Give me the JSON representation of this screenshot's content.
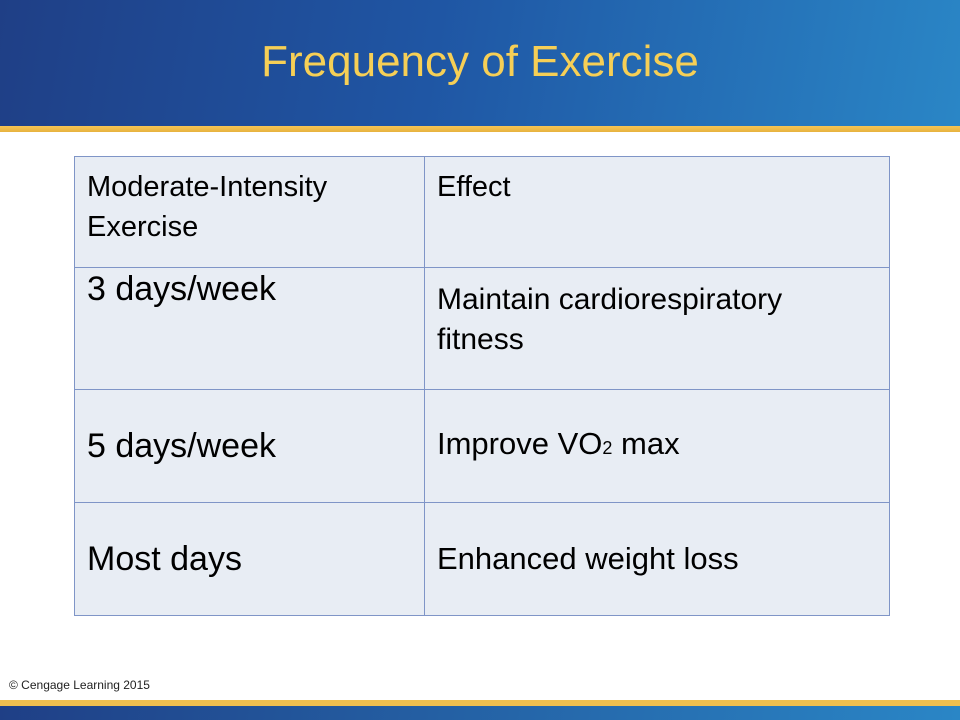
{
  "slide": {
    "title": "Frequency of Exercise",
    "copyright": "© Cengage Learning 2015"
  },
  "table": {
    "headers": [
      "Moderate-Intensity Exercise",
      "Effect"
    ],
    "rows": [
      {
        "frequency": "3 days/week",
        "effect": "Maintain cardiorespiratory fitness"
      },
      {
        "frequency": "5 days/week",
        "effect_prefix": "Improve VO",
        "effect_subscript": "2",
        "effect_suffix": " max"
      },
      {
        "frequency": "Most days",
        "effect": "Enhanced weight loss"
      }
    ]
  },
  "colors": {
    "header_gradient_start": "#1f3f86",
    "header_gradient_end": "#2a86c6",
    "title_color": "#f6cf56",
    "accent_stripe": "#efbf4f",
    "table_fill": "#e8edf4",
    "table_border": "#7f95c7"
  }
}
